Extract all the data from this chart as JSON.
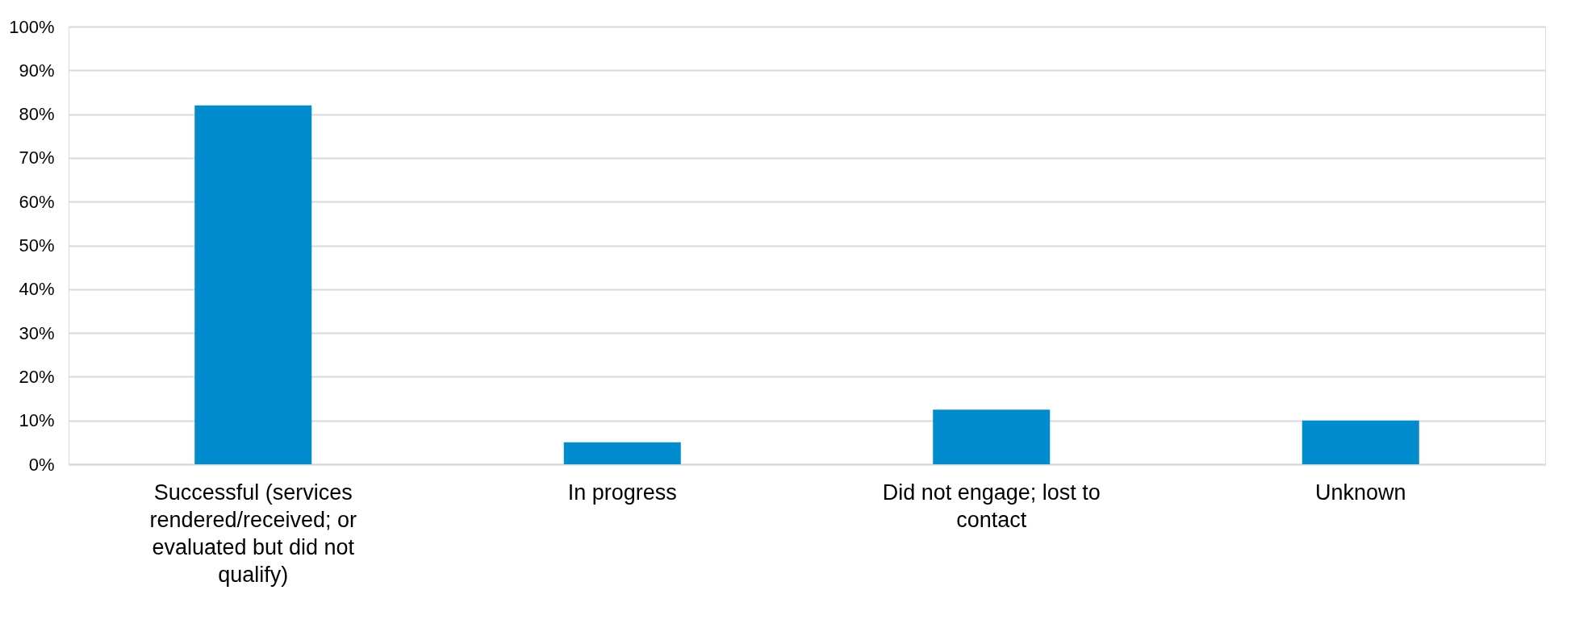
{
  "chart_data": {
    "type": "bar",
    "categories": [
      "Successful (services rendered/received; or evaluated but did not qualify)",
      "In progress",
      "Did not engage; lost to contact",
      "Unknown"
    ],
    "values": [
      82,
      5,
      12.5,
      10
    ],
    "color": "#008ccf",
    "ylim": [
      0,
      100
    ],
    "yticks": [
      {
        "value": 0,
        "label": "0%"
      },
      {
        "value": 10,
        "label": "10%"
      },
      {
        "value": 20,
        "label": "20%"
      },
      {
        "value": 30,
        "label": "30%"
      },
      {
        "value": 40,
        "label": "40%"
      },
      {
        "value": 50,
        "label": "50%"
      },
      {
        "value": 60,
        "label": "60%"
      },
      {
        "value": 70,
        "label": "70%"
      },
      {
        "value": 80,
        "label": "80%"
      },
      {
        "value": 90,
        "label": "90%"
      },
      {
        "value": 100,
        "label": "100%"
      }
    ],
    "grid": "y"
  }
}
